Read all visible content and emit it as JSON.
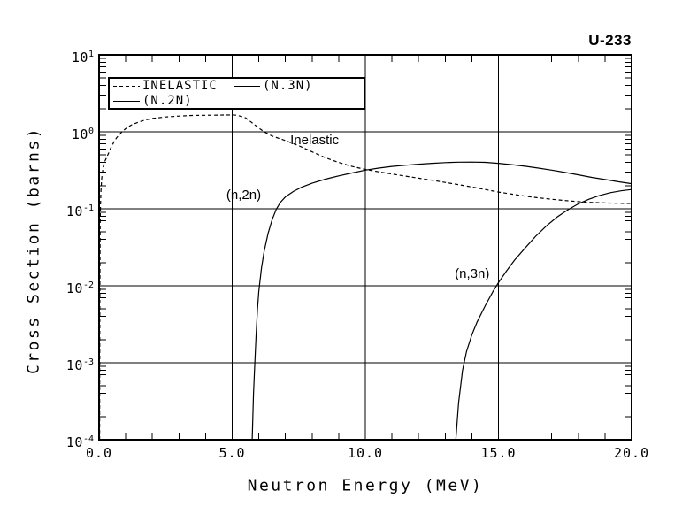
{
  "title": "U-233",
  "colors": {
    "foreground": "#000000",
    "background": "#ffffff"
  },
  "chart_data": {
    "type": "line",
    "title": "U-233",
    "xlabel": "Neutron Energy (MeV)",
    "ylabel": "Cross Section (barns)",
    "x_scale": "linear",
    "y_scale": "log",
    "xlim": [
      0,
      20
    ],
    "ylim_log": [
      -4,
      1
    ],
    "x_minor_step": 1,
    "grid": {
      "x_major": [
        5,
        10,
        15
      ],
      "y_major_exp": [
        0,
        -1,
        -2,
        -3
      ]
    },
    "x_ticks": [
      {
        "value": 0,
        "label": "0.0"
      },
      {
        "value": 5,
        "label": "5.0"
      },
      {
        "value": 10,
        "label": "10.0"
      },
      {
        "value": 15,
        "label": "15.0"
      },
      {
        "value": 20,
        "label": "20.0"
      }
    ],
    "y_tick_exponents": [
      1,
      0,
      -1,
      -2,
      -3,
      -4
    ],
    "legend": {
      "position": "top-left",
      "entries": [
        {
          "label": "INELASTIC",
          "style": "dashed"
        },
        {
          "label": "(N.3N)",
          "style": "solid"
        },
        {
          "label": "(N.2N)",
          "style": "solid"
        }
      ]
    },
    "annotations": [
      {
        "text": "Inelastic",
        "x": 7.18,
        "y": 0.974
      },
      {
        "text": "(n,2n)",
        "x": 4.78,
        "y": 0.189
      },
      {
        "text": "(n,3n)",
        "x": 13.36,
        "y": 0.0179
      }
    ],
    "series": [
      {
        "name": "Inelastic",
        "style": "dashed",
        "points": [
          [
            0.02,
            0.0001
          ],
          [
            0.022,
            0.0006
          ],
          [
            0.025,
            0.0025
          ],
          [
            0.03,
            0.009
          ],
          [
            0.035,
            0.03
          ],
          [
            0.04,
            0.06
          ],
          [
            0.05,
            0.1
          ],
          [
            0.07,
            0.17
          ],
          [
            0.1,
            0.25
          ],
          [
            0.15,
            0.34
          ],
          [
            0.2,
            0.4
          ],
          [
            0.28,
            0.46
          ],
          [
            0.36,
            0.53
          ],
          [
            0.45,
            0.63
          ],
          [
            0.55,
            0.73
          ],
          [
            0.65,
            0.83
          ],
          [
            0.75,
            0.91
          ],
          [
            0.86,
            1.0
          ],
          [
            1.0,
            1.1
          ],
          [
            1.2,
            1.22
          ],
          [
            1.5,
            1.35
          ],
          [
            1.8,
            1.44
          ],
          [
            2.0,
            1.49
          ],
          [
            2.5,
            1.56
          ],
          [
            3.0,
            1.6
          ],
          [
            3.5,
            1.63
          ],
          [
            4.0,
            1.64
          ],
          [
            4.5,
            1.65
          ],
          [
            5.0,
            1.66
          ],
          [
            5.2,
            1.64
          ],
          [
            5.5,
            1.52
          ],
          [
            5.7,
            1.35
          ],
          [
            6.0,
            1.12
          ],
          [
            6.2,
            1.0
          ],
          [
            6.5,
            0.88
          ],
          [
            7.0,
            0.77
          ],
          [
            7.5,
            0.66
          ],
          [
            8.0,
            0.55
          ],
          [
            8.5,
            0.46
          ],
          [
            9.0,
            0.4
          ],
          [
            9.5,
            0.355
          ],
          [
            10.0,
            0.325
          ],
          [
            10.5,
            0.302
          ],
          [
            11.0,
            0.283
          ],
          [
            11.5,
            0.266
          ],
          [
            12.0,
            0.25
          ],
          [
            12.5,
            0.235
          ],
          [
            13.0,
            0.22
          ],
          [
            13.5,
            0.206
          ],
          [
            14.0,
            0.192
          ],
          [
            14.5,
            0.178
          ],
          [
            15.0,
            0.165
          ],
          [
            15.5,
            0.155
          ],
          [
            16.0,
            0.146
          ],
          [
            16.5,
            0.139
          ],
          [
            17.0,
            0.133
          ],
          [
            17.5,
            0.128
          ],
          [
            18.0,
            0.124
          ],
          [
            18.5,
            0.121
          ],
          [
            19.0,
            0.119
          ],
          [
            19.5,
            0.118
          ],
          [
            20.0,
            0.117
          ]
        ]
      },
      {
        "name": "(n,2n)",
        "style": "solid",
        "points": [
          [
            5.75,
            0.0001
          ],
          [
            5.8,
            0.0004
          ],
          [
            5.85,
            0.001
          ],
          [
            5.9,
            0.0024
          ],
          [
            5.95,
            0.005
          ],
          [
            6.0,
            0.0085
          ],
          [
            6.1,
            0.017
          ],
          [
            6.2,
            0.028
          ],
          [
            6.35,
            0.048
          ],
          [
            6.5,
            0.072
          ],
          [
            6.65,
            0.098
          ],
          [
            6.8,
            0.12
          ],
          [
            7.0,
            0.143
          ],
          [
            7.3,
            0.168
          ],
          [
            7.6,
            0.19
          ],
          [
            8.0,
            0.215
          ],
          [
            8.5,
            0.243
          ],
          [
            9.0,
            0.268
          ],
          [
            9.5,
            0.292
          ],
          [
            10.0,
            0.318
          ],
          [
            10.5,
            0.338
          ],
          [
            11.0,
            0.355
          ],
          [
            11.5,
            0.368
          ],
          [
            12.0,
            0.38
          ],
          [
            12.5,
            0.39
          ],
          [
            13.0,
            0.398
          ],
          [
            13.5,
            0.403
          ],
          [
            14.0,
            0.405
          ],
          [
            14.5,
            0.401
          ],
          [
            15.0,
            0.39
          ],
          [
            15.5,
            0.375
          ],
          [
            16.0,
            0.357
          ],
          [
            16.5,
            0.338
          ],
          [
            17.0,
            0.318
          ],
          [
            17.5,
            0.297
          ],
          [
            18.0,
            0.276
          ],
          [
            18.5,
            0.256
          ],
          [
            19.0,
            0.24
          ],
          [
            19.5,
            0.225
          ],
          [
            20.0,
            0.212
          ]
        ]
      },
      {
        "name": "(n,3n)",
        "style": "solid",
        "points": [
          [
            13.4,
            0.0001
          ],
          [
            13.5,
            0.0003
          ],
          [
            13.65,
            0.0008
          ],
          [
            13.8,
            0.0014
          ],
          [
            14.0,
            0.0023
          ],
          [
            14.2,
            0.0034
          ],
          [
            14.5,
            0.0055
          ],
          [
            14.8,
            0.0085
          ],
          [
            15.0,
            0.011
          ],
          [
            15.3,
            0.0155
          ],
          [
            15.6,
            0.0215
          ],
          [
            16.0,
            0.031
          ],
          [
            16.4,
            0.044
          ],
          [
            16.8,
            0.06
          ],
          [
            17.2,
            0.078
          ],
          [
            17.6,
            0.097
          ],
          [
            18.0,
            0.116
          ],
          [
            18.4,
            0.133
          ],
          [
            18.8,
            0.149
          ],
          [
            19.2,
            0.162
          ],
          [
            19.6,
            0.171
          ],
          [
            20.0,
            0.178
          ]
        ]
      }
    ]
  }
}
